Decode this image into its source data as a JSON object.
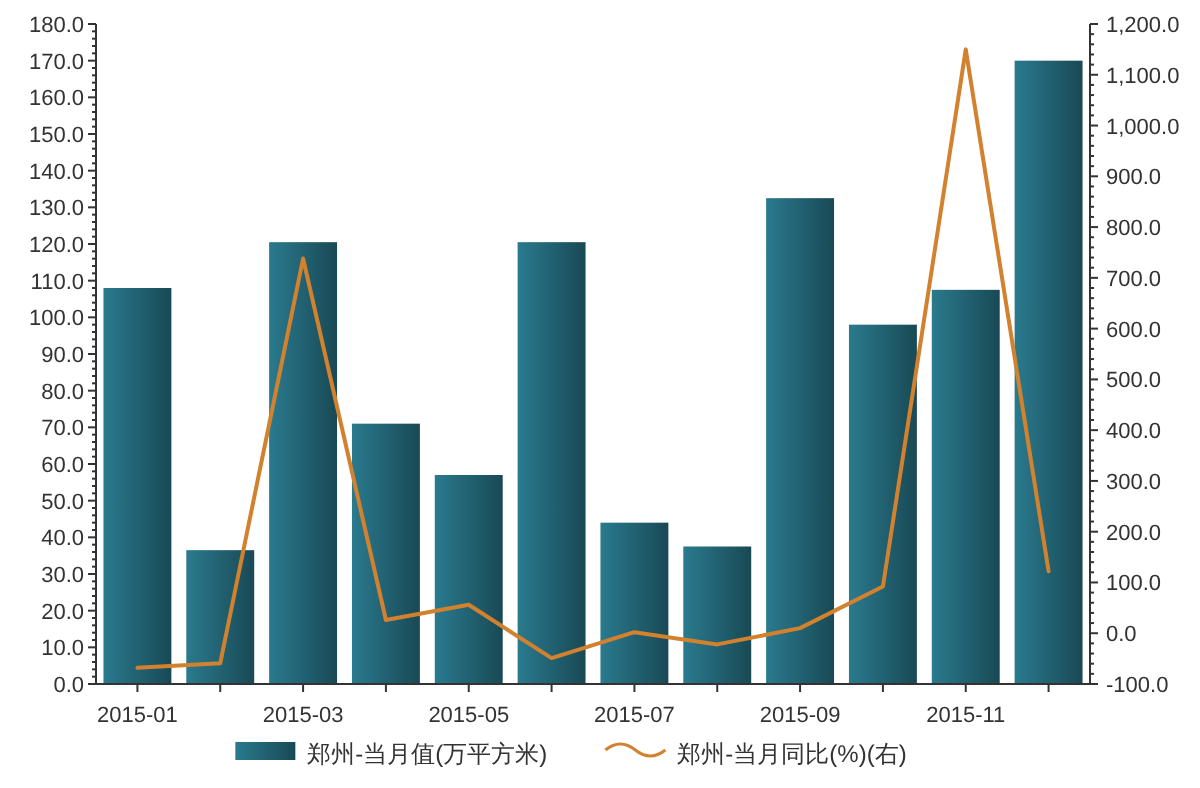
{
  "chart_data": {
    "type": "bar",
    "categories": [
      "2015-01",
      null,
      "2015-03",
      null,
      "2015-05",
      null,
      "2015-07",
      null,
      "2015-09",
      null,
      "2015-11",
      null
    ],
    "series": [
      {
        "name": "郑州-当月值(万平方米)",
        "color": "#2a7a8e",
        "values": [
          108,
          36.5,
          120.5,
          71,
          57,
          120.5,
          44,
          37.5,
          132.5,
          98,
          107.5,
          170
        ]
      },
      {
        "name": "郑州-当月同比(%)(右)",
        "type": "line",
        "axis": "y2",
        "color": "#d2822f",
        "values": [
          -68,
          -59,
          738,
          26,
          56,
          -49,
          2,
          -22,
          10,
          92,
          1150,
          122
        ]
      }
    ],
    "ylim": [
      0,
      180
    ],
    "yticks": [
      {
        "value": 0,
        "label": "0.0"
      },
      {
        "value": 10,
        "label": "10.0"
      },
      {
        "value": 20,
        "label": "20.0"
      },
      {
        "value": 30,
        "label": "30.0"
      },
      {
        "value": 40,
        "label": "40.0"
      },
      {
        "value": 50,
        "label": "50.0"
      },
      {
        "value": 60,
        "label": "60.0"
      },
      {
        "value": 70,
        "label": "70.0"
      },
      {
        "value": 80,
        "label": "80.0"
      },
      {
        "value": 90,
        "label": "90.0"
      },
      {
        "value": 100,
        "label": "100.0"
      },
      {
        "value": 110,
        "label": "110.0"
      },
      {
        "value": 120,
        "label": "120.0"
      },
      {
        "value": 130,
        "label": "130.0"
      },
      {
        "value": 140,
        "label": "140.0"
      },
      {
        "value": 150,
        "label": "150.0"
      },
      {
        "value": 160,
        "label": "160.0"
      },
      {
        "value": 170,
        "label": "170.0"
      },
      {
        "value": 180,
        "label": "180.0"
      }
    ],
    "y2lim": [
      -100,
      1200
    ],
    "y2ticks": [
      {
        "value": -100,
        "label": "-100.0"
      },
      {
        "value": 0,
        "label": "0.0"
      },
      {
        "value": 100,
        "label": "100.0"
      },
      {
        "value": 200,
        "label": "200.0"
      },
      {
        "value": 300,
        "label": "300.0"
      },
      {
        "value": 400,
        "label": "400.0"
      },
      {
        "value": 500,
        "label": "500.0"
      },
      {
        "value": 600,
        "label": "600.0"
      },
      {
        "value": 700,
        "label": "700.0"
      },
      {
        "value": 800,
        "label": "800.0"
      },
      {
        "value": 900,
        "label": "900.0"
      },
      {
        "value": 1000,
        "label": "1,000.0"
      },
      {
        "value": 1100,
        "label": "1,100.0"
      },
      {
        "value": 1200,
        "label": "1,200.0"
      }
    ],
    "grid": false,
    "legend": "bottom",
    "marker": "none",
    "line_style": "solid"
  }
}
